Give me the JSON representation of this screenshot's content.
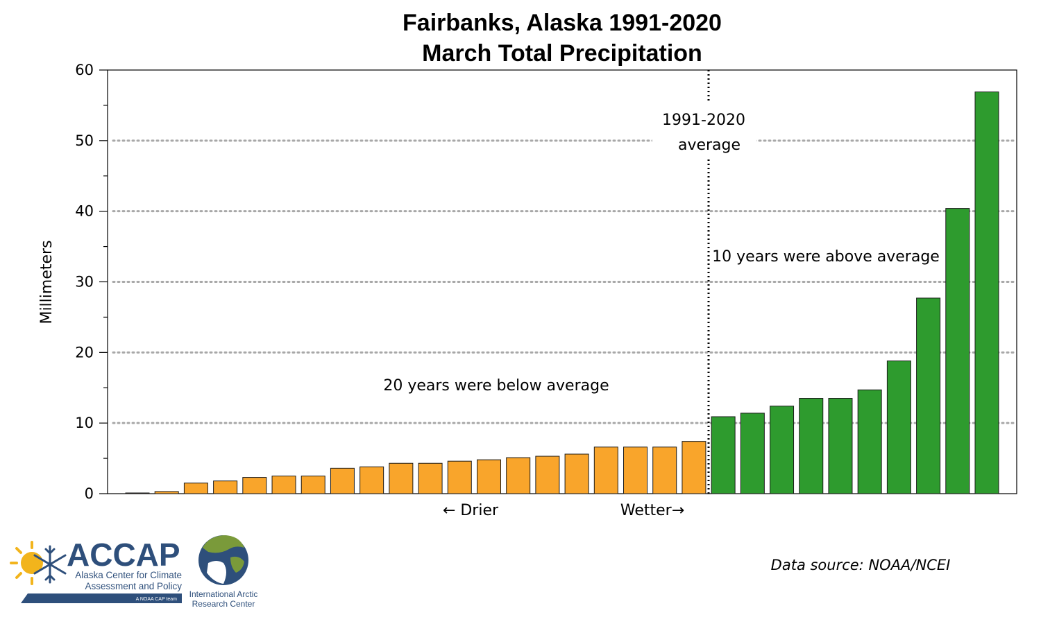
{
  "chart_data": {
    "type": "bar",
    "title_line1": "Fairbanks, Alaska 1991-2020",
    "title_line2": "March Total Precipitation",
    "ylabel": "Millimeters",
    "ylim": [
      0,
      60
    ],
    "yticks": [
      0,
      10,
      20,
      30,
      40,
      50,
      60
    ],
    "grid": "dotted horizontal at 10, 20, 30, 40, 50",
    "values": [
      0.1,
      0.3,
      1.5,
      1.8,
      2.3,
      2.5,
      2.5,
      3.6,
      3.8,
      4.3,
      4.3,
      4.6,
      4.8,
      5.1,
      5.3,
      5.6,
      6.6,
      6.6,
      6.6,
      7.4,
      10.9,
      11.4,
      12.4,
      13.5,
      13.5,
      14.7,
      18.8,
      27.7,
      40.4,
      56.9
    ],
    "below_count": 20,
    "colors": {
      "below": "#f9a52b",
      "above": "#2e9b2e",
      "bar_edge": "#1a1a1a"
    },
    "average_line_label_1": "1991-2020",
    "average_line_label_2": "average",
    "above_note": "10 years were above average",
    "below_note": "20 years were below average",
    "drier_label": "← Drier",
    "wetter_label": "Wetter→"
  },
  "footer": {
    "data_source": "Data source: NOAA/NCEI",
    "accap_name": "ACCAP",
    "accap_line1": "Alaska Center for Climate",
    "accap_line2": "Assessment and Policy",
    "accap_tagline": "A NOAA CAP team",
    "iarc_line1": "International Arctic",
    "iarc_line2": "Research Center"
  }
}
